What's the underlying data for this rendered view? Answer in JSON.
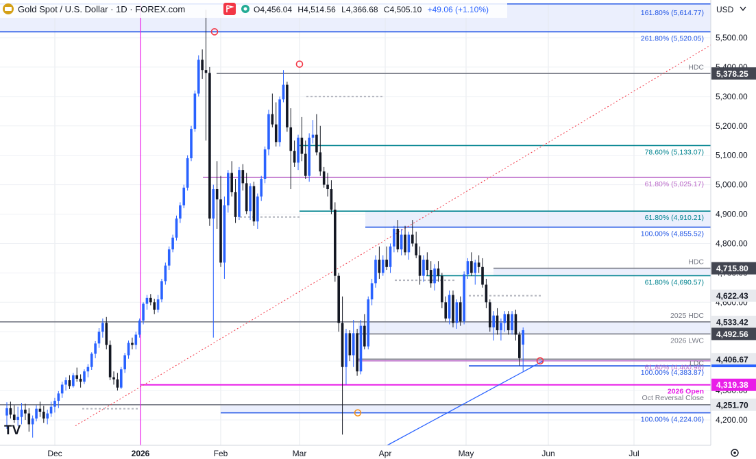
{
  "header": {
    "title": "Gold Spot / U.S. Dollar · 1D · FOREX.com",
    "ohlc": [
      {
        "k": "O",
        "v": "4,456.04"
      },
      {
        "k": "H",
        "v": "4,514.56"
      },
      {
        "k": "L",
        "v": "4,366.68"
      },
      {
        "k": "C",
        "v": "4,505.10"
      },
      {
        "k": "",
        "v": "+49.06 (+1.10%)"
      }
    ],
    "currency": "USD",
    "logo_text": "TV"
  },
  "colors": {
    "up": "#2962ff",
    "down": "#131722",
    "fib_blue": "#1e53e5",
    "fib_teal": "#00838f",
    "fib_purple": "#ba68c8",
    "gray_level": "#787b86",
    "magenta": "#e91ee8",
    "trend_red": "#f23645"
  },
  "chart_data": {
    "type": "candlestick",
    "symbol": "Gold Spot / U.S. Dollar",
    "timeframe": "1D",
    "ylim": [
      4150,
      5660
    ],
    "x_ticks": [
      "Dec",
      "2026",
      "Feb",
      "Mar",
      "Apr",
      "May",
      "Jun",
      "Jul"
    ],
    "y_ticks": [
      "5,500.00",
      "5,400.00",
      "5,300.00",
      "5,200.00",
      "5,100.00",
      "5,000.00",
      "4,900.00",
      "4,800.00",
      "4,700.00",
      "4,600.00",
      "4,500.00",
      "4,400.00",
      "4,300.00",
      "4,200.00"
    ],
    "levels": [
      {
        "label": "161.80% (5,614.77)",
        "value": 5614.77,
        "color": "fib_blue"
      },
      {
        "label": "261.80% (5,520.05)",
        "value": 5520.05,
        "color": "fib_blue"
      },
      {
        "label": "HDC",
        "value": 5378.25,
        "color": "gray_level"
      },
      {
        "label": "78.60% (5,133.07)",
        "value": 5133.07,
        "color": "fib_teal"
      },
      {
        "label": "61.80% (5,025.17)",
        "value": 5025.17,
        "color": "fib_purple"
      },
      {
        "label": "61.80% (4,910.21)",
        "value": 4910.21,
        "color": "fib_teal"
      },
      {
        "label": "100.00% (4,855.52)",
        "value": 4855.52,
        "color": "fib_blue"
      },
      {
        "label": "HDC",
        "value": 4715.8,
        "color": "gray_level"
      },
      {
        "label": "61.80% (4,690.57)",
        "value": 4690.57,
        "color": "fib_teal"
      },
      {
        "label": "2025 HDC",
        "value": 4533.42,
        "color": "gray_level"
      },
      {
        "label": "2026 LWC",
        "value": 4492.56,
        "color": "gray_level"
      },
      {
        "label": "61.80% (4,400.98)",
        "value": 4400.98,
        "color": "fib_purple"
      },
      {
        "label": "LDC",
        "value": 4406.67,
        "color": "gray_level"
      },
      {
        "label": "100.00% (4,383.87)",
        "value": 4383.87,
        "color": "fib_blue"
      },
      {
        "label": "2026 Open",
        "value": 4319.38,
        "color": "magenta"
      },
      {
        "label": "Oct Reversal Close",
        "value": 4251.7,
        "color": "gray_level"
      },
      {
        "label": "100.00% (4,224.06)",
        "value": 4224.06,
        "color": "fib_blue"
      }
    ],
    "price_tags": [
      {
        "text": "5,378.25",
        "value": 5378.25,
        "style": "dark"
      },
      {
        "text": "4,715.80",
        "value": 4715.8,
        "style": "dark"
      },
      {
        "text": "4,622.43",
        "value": 4622.43,
        "style": "light"
      },
      {
        "text": "4,533.42",
        "value": 4533.42,
        "style": "light"
      },
      {
        "text": "4,492.56",
        "value": 4492.56,
        "style": "dark"
      },
      {
        "text": "4,406.67",
        "value": 4406.67,
        "style": "light"
      },
      {
        "text": "4,319.38",
        "value": 4319.38,
        "style": "magenta"
      },
      {
        "text": "4,251.70",
        "value": 4251.7,
        "style": "light"
      }
    ],
    "zones": [
      {
        "from": 5520.05,
        "to": 5660,
        "color": "fib_blue"
      },
      {
        "from": 4855.52,
        "to": 4910.21,
        "color": "fib_blue"
      },
      {
        "from": 4690.57,
        "to": 4715.8,
        "color": "fib_blue"
      },
      {
        "from": 4492.56,
        "to": 4533.42,
        "color": "fib_blue"
      },
      {
        "from": 4224.06,
        "to": 4251.7,
        "color": "fib_blue"
      }
    ],
    "candles": [
      [
        4215,
        4260,
        4170,
        4240
      ],
      [
        4240,
        4262,
        4205,
        4218
      ],
      [
        4218,
        4250,
        4190,
        4200
      ],
      [
        4200,
        4245,
        4180,
        4210
      ],
      [
        4210,
        4258,
        4185,
        4235
      ],
      [
        4235,
        4255,
        4200,
        4222
      ],
      [
        4222,
        4240,
        4160,
        4185
      ],
      [
        4185,
        4215,
        4140,
        4205
      ],
      [
        4205,
        4250,
        4195,
        4238
      ],
      [
        4238,
        4262,
        4210,
        4228
      ],
      [
        4228,
        4248,
        4190,
        4205
      ],
      [
        4205,
        4235,
        4185,
        4222
      ],
      [
        4222,
        4262,
        4210,
        4245
      ],
      [
        4245,
        4275,
        4225,
        4265
      ],
      [
        4265,
        4298,
        4240,
        4290
      ],
      [
        4290,
        4330,
        4275,
        4320
      ],
      [
        4320,
        4345,
        4300,
        4335
      ],
      [
        4335,
        4352,
        4305,
        4315
      ],
      [
        4315,
        4360,
        4310,
        4352
      ],
      [
        4352,
        4378,
        4330,
        4340
      ],
      [
        4340,
        4355,
        4310,
        4330
      ],
      [
        4330,
        4372,
        4322,
        4365
      ],
      [
        4365,
        4390,
        4345,
        4380
      ],
      [
        4380,
        4430,
        4370,
        4425
      ],
      [
        4425,
        4468,
        4410,
        4460
      ],
      [
        4460,
        4512,
        4445,
        4500
      ],
      [
        4500,
        4545,
        4480,
        4530
      ],
      [
        4530,
        4550,
        4440,
        4455
      ],
      [
        4455,
        4470,
        4335,
        4345
      ],
      [
        4345,
        4365,
        4320,
        4338
      ],
      [
        4338,
        4360,
        4300,
        4310
      ],
      [
        4310,
        4380,
        4305,
        4372
      ],
      [
        4372,
        4428,
        4360,
        4420
      ],
      [
        4420,
        4470,
        4408,
        4462
      ],
      [
        4462,
        4480,
        4440,
        4455
      ],
      [
        4455,
        4500,
        4440,
        4490
      ],
      [
        4490,
        4545,
        4480,
        4538
      ],
      [
        4538,
        4600,
        4525,
        4595
      ],
      [
        4595,
        4625,
        4575,
        4615
      ],
      [
        4615,
        4628,
        4590,
        4600
      ],
      [
        4600,
        4612,
        4560,
        4575
      ],
      [
        4575,
        4625,
        4565,
        4610
      ],
      [
        4610,
        4680,
        4600,
        4672
      ],
      [
        4672,
        4735,
        4660,
        4725
      ],
      [
        4725,
        4790,
        4710,
        4780
      ],
      [
        4780,
        4830,
        4770,
        4820
      ],
      [
        4820,
        4895,
        4810,
        4885
      ],
      [
        4885,
        4940,
        4870,
        4930
      ],
      [
        4930,
        5000,
        4920,
        4990
      ],
      [
        4990,
        5100,
        4980,
        5090
      ],
      [
        5090,
        5200,
        5080,
        5190
      ],
      [
        5190,
        5320,
        5180,
        5310
      ],
      [
        5310,
        5440,
        5300,
        5425
      ],
      [
        5425,
        5460,
        5360,
        5390
      ],
      [
        5390,
        5595,
        5150,
        5380
      ],
      [
        5380,
        5400,
        4860,
        4885
      ],
      [
        4885,
        5000,
        4480,
        4985
      ],
      [
        4985,
        5080,
        4850,
        4950
      ],
      [
        4950,
        5030,
        4720,
        4735
      ],
      [
        4735,
        4960,
        4680,
        4930
      ],
      [
        4930,
        5050,
        4905,
        5040
      ],
      [
        5040,
        5080,
        4960,
        4975
      ],
      [
        4975,
        5020,
        4870,
        4890
      ],
      [
        4890,
        5060,
        4880,
        5050
      ],
      [
        5050,
        5070,
        4980,
        5005
      ],
      [
        5005,
        5040,
        4900,
        4910
      ],
      [
        4910,
        5005,
        4880,
        4995
      ],
      [
        4995,
        5010,
        4860,
        4875
      ],
      [
        4875,
        4970,
        4850,
        4960
      ],
      [
        4960,
        5030,
        4945,
        5020
      ],
      [
        5020,
        5130,
        5005,
        5120
      ],
      [
        5120,
        5255,
        5100,
        5240
      ],
      [
        5240,
        5310,
        5195,
        5205
      ],
      [
        5205,
        5280,
        5130,
        5145
      ],
      [
        5145,
        5300,
        5130,
        5290
      ],
      [
        5290,
        5390,
        5280,
        5340
      ],
      [
        5340,
        5350,
        5180,
        5195
      ],
      [
        5195,
        5260,
        4985,
        5115
      ],
      [
        5115,
        5150,
        5060,
        5075
      ],
      [
        5075,
        5170,
        5050,
        5160
      ],
      [
        5160,
        5230,
        5080,
        5105
      ],
      [
        5105,
        5150,
        5020,
        5030
      ],
      [
        5030,
        5175,
        5010,
        5160
      ],
      [
        5160,
        5220,
        5140,
        5170
      ],
      [
        5170,
        5240,
        5100,
        5110
      ],
      [
        5110,
        5200,
        5030,
        5045
      ],
      [
        5045,
        5060,
        4990,
        5000
      ],
      [
        5000,
        5040,
        4960,
        4985
      ],
      [
        4985,
        5015,
        4900,
        4915
      ],
      [
        4915,
        4940,
        4670,
        4690
      ],
      [
        4690,
        4700,
        4500,
        4530
      ],
      [
        4530,
        4620,
        4150,
        4380
      ],
      [
        4380,
        4510,
        4320,
        4495
      ],
      [
        4495,
        4505,
        4400,
        4420
      ],
      [
        4420,
        4540,
        4380,
        4495
      ],
      [
        4495,
        4510,
        4350,
        4365
      ],
      [
        4365,
        4540,
        4355,
        4520
      ],
      [
        4520,
        4560,
        4440,
        4450
      ],
      [
        4450,
        4620,
        4440,
        4610
      ],
      [
        4610,
        4680,
        4590,
        4665
      ],
      [
        4665,
        4760,
        4650,
        4745
      ],
      [
        4745,
        4790,
        4680,
        4700
      ],
      [
        4700,
        4760,
        4690,
        4745
      ],
      [
        4745,
        4790,
        4710,
        4720
      ],
      [
        4720,
        4800,
        4700,
        4790
      ],
      [
        4790,
        4860,
        4770,
        4850
      ],
      [
        4850,
        4880,
        4770,
        4780
      ],
      [
        4780,
        4850,
        4760,
        4830
      ],
      [
        4830,
        4860,
        4760,
        4770
      ],
      [
        4770,
        4840,
        4745,
        4830
      ],
      [
        4830,
        4880,
        4790,
        4800
      ],
      [
        4800,
        4840,
        4750,
        4760
      ],
      [
        4760,
        4790,
        4660,
        4690
      ],
      [
        4690,
        4760,
        4670,
        4745
      ],
      [
        4745,
        4770,
        4690,
        4710
      ],
      [
        4710,
        4740,
        4650,
        4665
      ],
      [
        4665,
        4730,
        4640,
        4715
      ],
      [
        4715,
        4740,
        4670,
        4690
      ],
      [
        4690,
        4700,
        4580,
        4600
      ],
      [
        4600,
        4620,
        4535,
        4545
      ],
      [
        4545,
        4640,
        4525,
        4625
      ],
      [
        4625,
        4640,
        4515,
        4530
      ],
      [
        4530,
        4610,
        4510,
        4600
      ],
      [
        4600,
        4620,
        4520,
        4535
      ],
      [
        4535,
        4705,
        4525,
        4695
      ],
      [
        4695,
        4750,
        4680,
        4740
      ],
      [
        4740,
        4770,
        4690,
        4700
      ],
      [
        4700,
        4745,
        4660,
        4735
      ],
      [
        4735,
        4760,
        4700,
        4720
      ],
      [
        4720,
        4750,
        4650,
        4660
      ],
      [
        4660,
        4680,
        4580,
        4600
      ],
      [
        4600,
        4610,
        4500,
        4515
      ],
      [
        4515,
        4570,
        4470,
        4555
      ],
      [
        4555,
        4580,
        4490,
        4505
      ],
      [
        4505,
        4545,
        4470,
        4530
      ],
      [
        4530,
        4570,
        4500,
        4560
      ],
      [
        4560,
        4570,
        4490,
        4505
      ],
      [
        4505,
        4570,
        4490,
        4560
      ],
      [
        4560,
        4575,
        4470,
        4490
      ],
      [
        4490,
        4500,
        4385,
        4410
      ],
      [
        4456.04,
        4514.56,
        4366.68,
        4505.1
      ]
    ]
  }
}
